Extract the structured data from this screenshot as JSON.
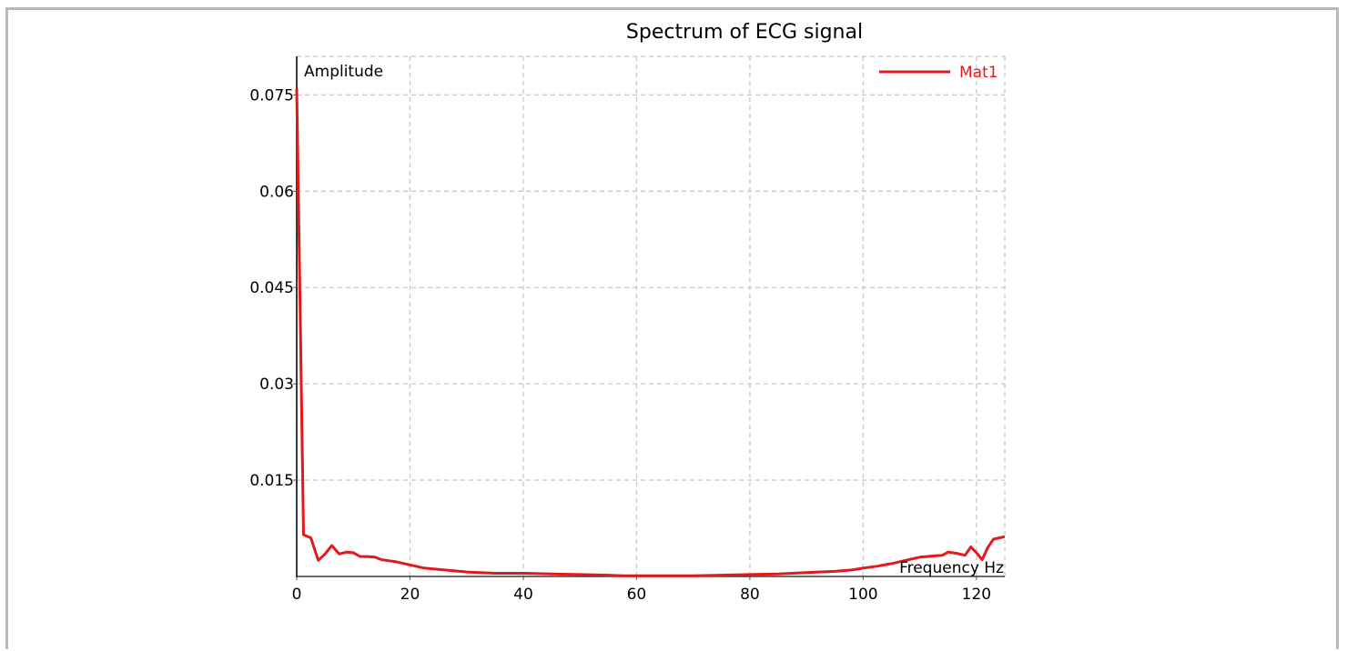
{
  "chart_data": {
    "type": "line",
    "title": "Spectrum of ECG signal",
    "xlabel": "Frequency Hz",
    "ylabel": "Amplitude",
    "xlim": [
      0,
      125
    ],
    "ylim": [
      0,
      0.081
    ],
    "xticks": [
      0,
      20,
      40,
      60,
      80,
      100,
      120
    ],
    "xtick_labels": [
      "0",
      "20",
      "40",
      "60",
      "80",
      "100",
      "120"
    ],
    "yticks": [
      0.015,
      0.03,
      0.045,
      0.06,
      0.075
    ],
    "ytick_labels": [
      "0.015",
      "0.03",
      "0.045",
      "0.06",
      "0.075"
    ],
    "grid": true,
    "legend_position": "top-right",
    "series": [
      {
        "name": "Mat1",
        "color": "#e3191c",
        "x": [
          0,
          0.5,
          1.2,
          2.5,
          3.8,
          5.0,
          6.2,
          7.5,
          8.8,
          10.0,
          11.2,
          12.5,
          13.8,
          15.0,
          17.5,
          20.0,
          22.5,
          25.0,
          27.5,
          30.0,
          35.0,
          40.0,
          45.0,
          50.0,
          55.0,
          57.5,
          60.0,
          65.0,
          70.0,
          75.0,
          80.0,
          85.0,
          90.0,
          95.0,
          98.0,
          100.0,
          102.5,
          105.0,
          107.5,
          110.0,
          112.5,
          114.0,
          115.0,
          116.5,
          118.0,
          119.0,
          120.0,
          121.0,
          122.0,
          123.0,
          124.0,
          125.0
        ],
        "values": [
          0.076,
          0.048,
          0.0065,
          0.006,
          0.0025,
          0.0035,
          0.0048,
          0.0035,
          0.0038,
          0.0037,
          0.0031,
          0.0031,
          0.003,
          0.0026,
          0.0023,
          0.0018,
          0.0013,
          0.0011,
          0.0009,
          0.0007,
          0.0005,
          0.0005,
          0.0004,
          0.0003,
          0.0002,
          0.0001,
          0.0001,
          0.0001,
          0.0001,
          0.0002,
          0.0003,
          0.0004,
          0.0006,
          0.0008,
          0.001,
          0.0013,
          0.0016,
          0.002,
          0.0025,
          0.003,
          0.0032,
          0.0033,
          0.0038,
          0.0036,
          0.0033,
          0.0046,
          0.0037,
          0.0026,
          0.0045,
          0.0058,
          0.006,
          0.0062
        ]
      }
    ]
  }
}
